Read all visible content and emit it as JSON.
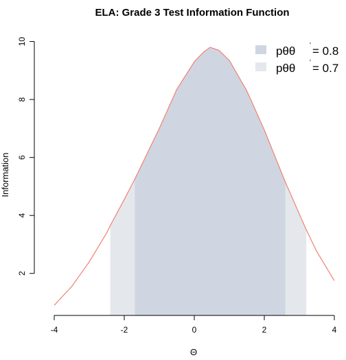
{
  "chart_data": {
    "type": "area",
    "title": "ELA: Grade 3 Test Information Function",
    "xlabel": "Θ",
    "ylabel": "Information",
    "xlim": [
      -4,
      4
    ],
    "ylim": [
      0.55,
      10.25
    ],
    "x_ticks": [
      -4,
      -2,
      0,
      2,
      4
    ],
    "x_tick_labels": [
      "-4",
      "-2",
      "0",
      "2",
      "4"
    ],
    "y_ticks": [
      2,
      4,
      6,
      8,
      10
    ],
    "y_tick_labels": [
      "2",
      "4",
      "6",
      "8",
      "10"
    ],
    "curve": {
      "color": "#f08070",
      "x": [
        -4.0,
        -3.5,
        -3.0,
        -2.5,
        -2.4,
        -2.0,
        -1.7,
        -1.5,
        -1.0,
        -0.5,
        0.0,
        0.25,
        0.45,
        0.7,
        1.0,
        1.5,
        2.0,
        2.5,
        2.6,
        3.0,
        3.2,
        3.5,
        4.0
      ],
      "y": [
        0.9,
        1.55,
        2.4,
        3.4,
        3.65,
        4.55,
        5.25,
        5.75,
        7.0,
        8.35,
        9.3,
        9.62,
        9.8,
        9.7,
        9.35,
        8.3,
        6.95,
        5.45,
        5.15,
        4.05,
        3.5,
        2.75,
        1.75
      ]
    },
    "bands": [
      {
        "name": "pθθ' = 0.7",
        "x_range": [
          -2.4,
          3.2
        ],
        "color": "#e4e8ed"
      },
      {
        "name": "pθθ' = 0.8",
        "x_range": [
          -1.7,
          2.6
        ],
        "color": "#cfd6e2"
      }
    ],
    "legend": {
      "position": "top-right",
      "entries": [
        {
          "label": "pθθ",
          "sup": "'",
          "value": "= 0.8",
          "color": "#cfd6e2"
        },
        {
          "label": "pθθ",
          "sup": "'",
          "value": "= 0.7",
          "color": "#e4e8ed"
        }
      ]
    },
    "grid": false
  }
}
